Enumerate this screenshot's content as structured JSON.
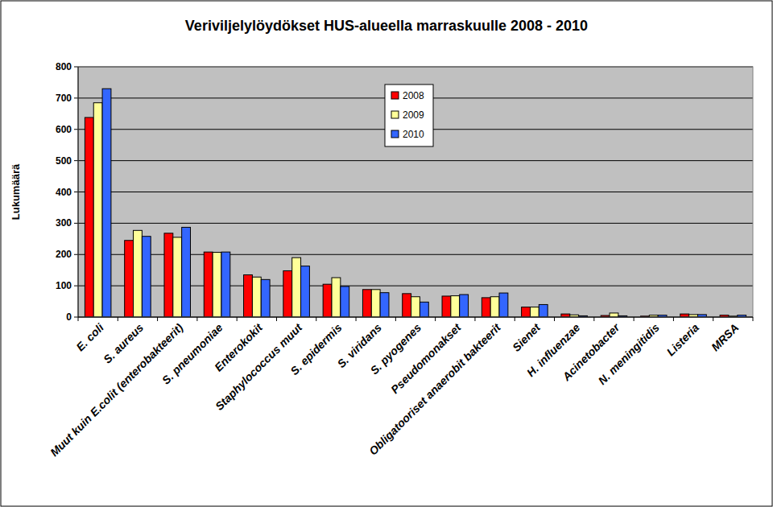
{
  "chart_data": {
    "type": "bar",
    "title": "Veriviljelylöydökset HUS-alueella marraskuulle 2008 - 2010",
    "y_label": "Lukumäärä",
    "categories": [
      "E. coli",
      "S. aureus",
      "Muut kuin E.colit (enterobakteerit)",
      "S. pneumoniae",
      "Enterokokit",
      "Staphylococcus muut",
      "S. epidermis",
      "S. viridans",
      "S. pyogenes",
      "Pseudomonakset",
      "Obligatooriset anaerobit bakteerit",
      "Sienet",
      "H. influenzae",
      "Acinetobacter",
      "N. meningitidis",
      "Listeria",
      "MRSA"
    ],
    "series": [
      {
        "name": "2008",
        "color": "#ff0000",
        "values": [
          638,
          245,
          268,
          208,
          135,
          148,
          105,
          88,
          75,
          67,
          62,
          32,
          10,
          5,
          3,
          10,
          6
        ]
      },
      {
        "name": "2009",
        "color": "#ffff99",
        "values": [
          685,
          277,
          255,
          207,
          128,
          190,
          126,
          88,
          65,
          68,
          65,
          32,
          7,
          13,
          6,
          8,
          3
        ]
      },
      {
        "name": "2010",
        "color": "#3366ff",
        "values": [
          730,
          258,
          287,
          208,
          120,
          163,
          98,
          78,
          48,
          72,
          77,
          40,
          4,
          4,
          6,
          8,
          6
        ]
      }
    ],
    "ylim": [
      0,
      800
    ],
    "yticks": [
      0,
      100,
      200,
      300,
      400,
      500,
      600,
      700,
      800
    ],
    "grid": true,
    "legend": "top"
  }
}
